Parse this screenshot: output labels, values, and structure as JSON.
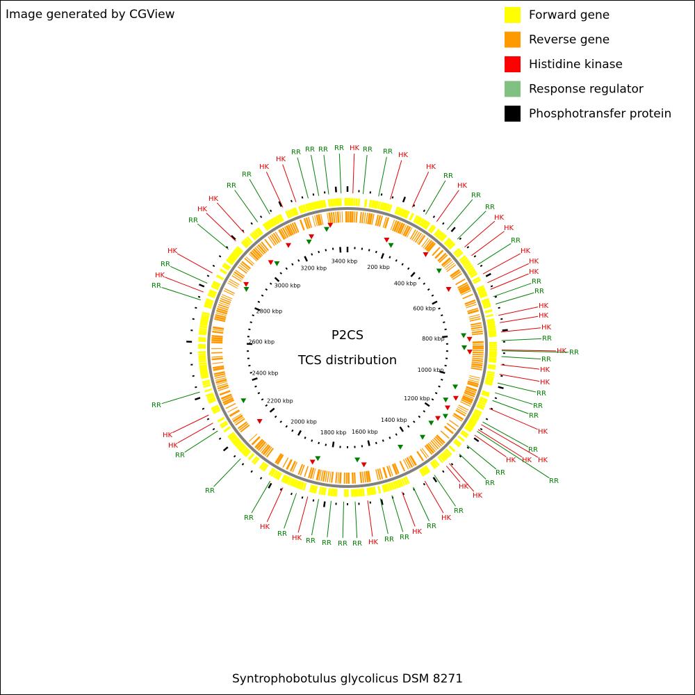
{
  "header": {
    "credit": "Image generated by CGView"
  },
  "legend": [
    {
      "label": "Forward gene",
      "color": "#ffff00"
    },
    {
      "label": "Reverse gene",
      "color": "#ff9900"
    },
    {
      "label": "Histidine kinase",
      "color": "#ff0000"
    },
    {
      "label": "Response regulator",
      "color": "#80c080"
    },
    {
      "label": "Phosphotransfer protein",
      "color": "#000000"
    }
  ],
  "center": {
    "title": "P2CS",
    "subtitle": "TCS distribution"
  },
  "scale_labels": [
    "200 kbp",
    "400 kbp",
    "600 kbp",
    "800 kbp",
    "1000 kbp",
    "1200 kbp",
    "1400 kbp",
    "1600 kbp",
    "1800 kbp",
    "2000 kbp",
    "2200 kbp",
    "2400 kbp",
    "2600 kbp",
    "2800 kbp",
    "3000 kbp",
    "3200 kbp",
    "3400 kbp"
  ],
  "feature_labels": [
    {
      "label": "RR",
      "color": "#008000"
    },
    {
      "label": "HK",
      "color": "#e00000"
    },
    {
      "label": "HK",
      "color": "#e00000"
    },
    {
      "label": "RR",
      "color": "#008000"
    },
    {
      "label": "RR",
      "color": "#008000"
    },
    {
      "label": "HK",
      "color": "#e00000"
    },
    {
      "label": "HK",
      "color": "#e00000"
    },
    {
      "label": "RR",
      "color": "#008000"
    },
    {
      "label": "RR",
      "color": "#008000"
    },
    {
      "label": "RR",
      "color": "#008000"
    },
    {
      "label": "RR",
      "color": "#008000"
    },
    {
      "label": "HK",
      "color": "#e00000"
    },
    {
      "label": "RR",
      "color": "#008000"
    },
    {
      "label": "RR",
      "color": "#008000"
    },
    {
      "label": "HK",
      "color": "#e00000"
    },
    {
      "label": "HK",
      "color": "#e00000"
    },
    {
      "label": "RR",
      "color": "#008000"
    },
    {
      "label": "HK",
      "color": "#e00000"
    },
    {
      "label": "RR",
      "color": "#008000"
    },
    {
      "label": "RR",
      "color": "#008000"
    },
    {
      "label": "HK",
      "color": "#e00000"
    },
    {
      "label": "HK",
      "color": "#e00000"
    },
    {
      "label": "RR",
      "color": "#008000"
    },
    {
      "label": "HK",
      "color": "#e00000"
    },
    {
      "label": "HK",
      "color": "#e00000"
    },
    {
      "label": "HK",
      "color": "#e00000"
    },
    {
      "label": "RR",
      "color": "#008000"
    },
    {
      "label": "RR",
      "color": "#008000"
    },
    {
      "label": "HK",
      "color": "#e00000"
    },
    {
      "label": "HK",
      "color": "#e00000"
    },
    {
      "label": "HK",
      "color": "#e00000"
    },
    {
      "label": "RR",
      "color": "#008000"
    },
    {
      "label": "HK",
      "color": "#e00000"
    },
    {
      "label": "RR",
      "color": "#008000"
    },
    {
      "label": "RR",
      "color": "#008000"
    },
    {
      "label": "HK",
      "color": "#e00000"
    },
    {
      "label": "HK",
      "color": "#e00000"
    },
    {
      "label": "RR",
      "color": "#008000"
    },
    {
      "label": "RR",
      "color": "#008000"
    },
    {
      "label": "RR",
      "color": "#008000"
    },
    {
      "label": "HK",
      "color": "#e00000"
    },
    {
      "label": "RR",
      "color": "#008000"
    },
    {
      "label": "HK",
      "color": "#e00000"
    },
    {
      "label": "HK",
      "color": "#e00000"
    },
    {
      "label": "HK",
      "color": "#e00000"
    },
    {
      "label": "RR",
      "color": "#008000"
    },
    {
      "label": "RR",
      "color": "#008000"
    },
    {
      "label": "RR",
      "color": "#008000"
    },
    {
      "label": "HK",
      "color": "#e00000"
    },
    {
      "label": "HK",
      "color": "#e00000"
    },
    {
      "label": "RR",
      "color": "#008000"
    },
    {
      "label": "HK",
      "color": "#e00000"
    },
    {
      "label": "RR",
      "color": "#008000"
    },
    {
      "label": "HK",
      "color": "#e00000"
    },
    {
      "label": "RR",
      "color": "#008000"
    },
    {
      "label": "RR",
      "color": "#008000"
    },
    {
      "label": "HK",
      "color": "#e00000"
    },
    {
      "label": "RR",
      "color": "#008000"
    },
    {
      "label": "RR",
      "color": "#008000"
    },
    {
      "label": "RR",
      "color": "#008000"
    },
    {
      "label": "RR",
      "color": "#008000"
    },
    {
      "label": "HK",
      "color": "#e00000"
    },
    {
      "label": "RR",
      "color": "#008000"
    },
    {
      "label": "HK",
      "color": "#e00000"
    },
    {
      "label": "RR",
      "color": "#008000"
    },
    {
      "label": "RR",
      "color": "#008000"
    },
    {
      "label": "RR",
      "color": "#008000"
    },
    {
      "label": "HK",
      "color": "#e00000"
    },
    {
      "label": "HK",
      "color": "#e00000"
    },
    {
      "label": "RR",
      "color": "#008000"
    },
    {
      "label": "RR",
      "color": "#008000"
    },
    {
      "label": "HK",
      "color": "#e00000"
    },
    {
      "label": "RR",
      "color": "#008000"
    },
    {
      "label": "HK",
      "color": "#e00000"
    }
  ],
  "footer": {
    "organism": "Syntrophobotulus glycolicus DSM 8271"
  }
}
